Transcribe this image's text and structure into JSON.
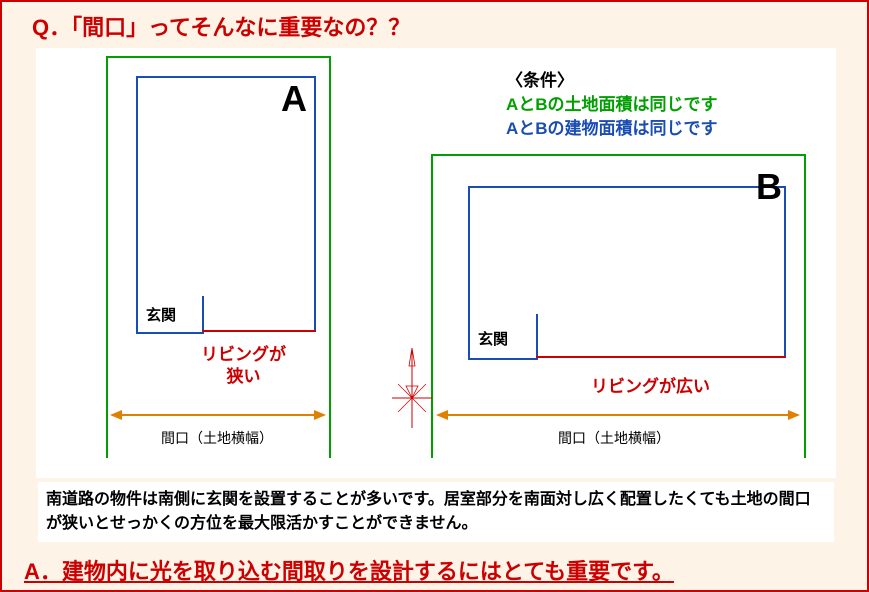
{
  "question": "Q．「間口」ってそんなに重要なの？？",
  "diagram": {
    "lotA": {
      "label": "A",
      "genkan": "玄関",
      "living": "リビングが\n狭い",
      "frontage": "間口（土地横幅）",
      "outer_color": "#00a000",
      "inner_color": "#1a4db3",
      "living_line_color": "#cc0000",
      "arrow_color": "#e08000"
    },
    "lotB": {
      "label": "B",
      "genkan": "玄関",
      "living": "リビングが広い",
      "frontage": "間口（土地横幅）",
      "outer_color": "#00a000",
      "inner_color": "#1a4db3",
      "living_line_color": "#cc0000",
      "arrow_color": "#e08000"
    },
    "conditions": {
      "title": "〈条件〉",
      "line1": "AとBの土地面積は同じです",
      "line2": "AとBの建物面積は同じです",
      "title_color": "#000000",
      "line1_color": "#00a000",
      "line2_color": "#1a4db3"
    },
    "compass_color": "#cc0000"
  },
  "explanation": "南道路の物件は南側に玄関を設置することが多いです。居室部分を南面対し広く配置したくても土地の間口が狭いとせっかくの方位を最大限活かすことができません。",
  "answer": "A．建物内に光を取り込む間取りを設計するにはとても重要です。",
  "colors": {
    "page_bg": "#fdf3e7",
    "panel_bg": "#ffffff",
    "border": "#cc0000",
    "question_color": "#cc0000",
    "answer_color": "#cc0000"
  },
  "fontsizes": {
    "question": 22,
    "answer": 22,
    "diagram_label": 36,
    "text": 17,
    "frontage": 14,
    "explanation": 16
  }
}
